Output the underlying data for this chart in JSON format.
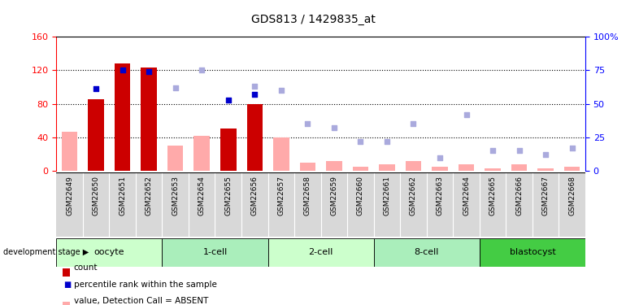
{
  "title": "GDS813 / 1429835_at",
  "samples": [
    "GSM22649",
    "GSM22650",
    "GSM22651",
    "GSM22652",
    "GSM22653",
    "GSM22654",
    "GSM22655",
    "GSM22656",
    "GSM22657",
    "GSM22658",
    "GSM22659",
    "GSM22660",
    "GSM22661",
    "GSM22662",
    "GSM22663",
    "GSM22664",
    "GSM22665",
    "GSM22666",
    "GSM22667",
    "GSM22668"
  ],
  "count_values": [
    0,
    85,
    128,
    123,
    0,
    0,
    50,
    80,
    0,
    0,
    0,
    0,
    0,
    0,
    0,
    0,
    0,
    0,
    0,
    0
  ],
  "percentile_values": [
    0,
    61,
    75,
    74,
    0,
    0,
    53,
    57,
    0,
    0,
    0,
    0,
    0,
    0,
    0,
    0,
    0,
    0,
    0,
    0
  ],
  "value_absent": [
    47,
    0,
    0,
    0,
    30,
    42,
    0,
    0,
    40,
    10,
    12,
    5,
    8,
    12,
    5,
    8,
    3,
    8,
    3,
    5
  ],
  "rank_absent": [
    0,
    0,
    0,
    0,
    62,
    75,
    0,
    63,
    60,
    35,
    32,
    22,
    22,
    35,
    10,
    42,
    15,
    15,
    12,
    17
  ],
  "stages": [
    {
      "label": "oocyte",
      "start": 0,
      "end": 3,
      "color": "#ccffcc"
    },
    {
      "label": "1-cell",
      "start": 4,
      "end": 7,
      "color": "#aaeebb"
    },
    {
      "label": "2-cell",
      "start": 8,
      "end": 11,
      "color": "#ccffcc"
    },
    {
      "label": "8-cell",
      "start": 12,
      "end": 15,
      "color": "#aaeebb"
    },
    {
      "label": "blastocyst",
      "start": 16,
      "end": 19,
      "color": "#44cc44"
    }
  ],
  "ylim_left": [
    0,
    160
  ],
  "ylim_right": [
    0,
    100
  ],
  "yticks_left": [
    0,
    40,
    80,
    120,
    160
  ],
  "yticks_right": [
    0,
    25,
    50,
    75,
    100
  ],
  "color_count": "#cc0000",
  "color_percentile": "#0000cc",
  "color_value_absent": "#ffaaaa",
  "color_rank_absent": "#aaaadd",
  "bar_width": 0.6
}
